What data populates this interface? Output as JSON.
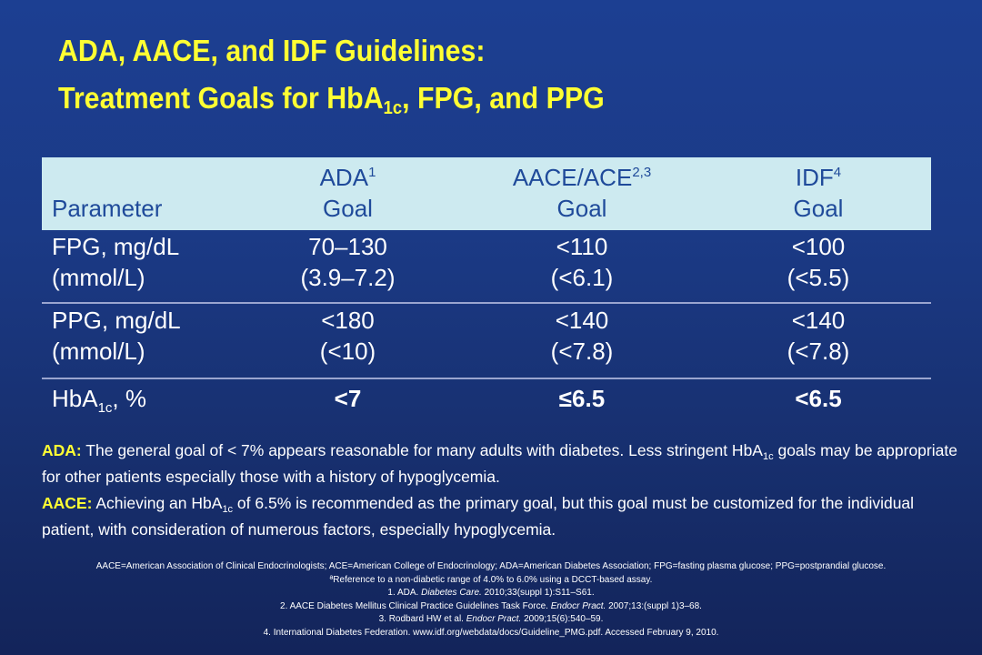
{
  "title": {
    "line1": "ADA, AACE, and IDF Guidelines:",
    "line2_pre": "Treatment Goals for HbA",
    "line2_sub": "1c",
    "line2_post": ", FPG, and PPG"
  },
  "table": {
    "header": {
      "parameter": "Parameter",
      "ada_name": "ADA",
      "ada_ref": "1",
      "ada_goal": "Goal",
      "aace_name": "AACE/ACE",
      "aace_ref": "2,3",
      "aace_goal": "Goal",
      "idf_name": "IDF",
      "idf_ref": "4",
      "idf_goal": "Goal"
    },
    "rows": [
      {
        "param_line1": "FPG, mg/dL",
        "param_line2": "(mmol/L)",
        "ada_line1": "70–130",
        "ada_line2": "(3.9–7.2)",
        "aace_line1": "<110",
        "aace_line2": "(<6.1)",
        "idf_line1": "<100",
        "idf_line2": "(<5.5)"
      },
      {
        "param_line1": "PPG, mg/dL",
        "param_line2": "(mmol/L)",
        "ada_line1": "<180",
        "ada_line2": "(<10)",
        "aace_line1": "<140",
        "aace_line2": "(<7.8)",
        "idf_line1": "<140",
        "idf_line2": "(<7.8)"
      },
      {
        "param_pre": "HbA",
        "param_sub": "1c",
        "param_post": ", %",
        "ada": "<7",
        "aace": "≤6.5",
        "idf": "<6.5"
      }
    ]
  },
  "notes": {
    "ada_label": "ADA:",
    "ada_text_pre": " The general goal of < 7% appears reasonable for many adults with diabetes.  Less stringent HbA",
    "ada_text_sub": "1c",
    "ada_text_post": " goals may be appropriate for other patients especially those with a history of hypoglycemia.",
    "aace_label": "AACE:",
    "aace_text_pre": " Achieving an HbA",
    "aace_text_sub": "1c",
    "aace_text_post": " of 6.5% is recommended as the primary goal, but this goal must be customized for the individual patient, with consideration of numerous factors, especially hypoglycemia."
  },
  "footnotes": {
    "abbreviations": "AACE=American Association of Clinical Endocrinologists;  ACE=American College of Endocrinology; ADA=American Diabetes Association;  FPG=fasting plasma glucose; PPG=postprandial glucose.",
    "reference_note": "ªReference to a non-diabetic range of 4.0% to 6.0% using a DCCT-based assay.",
    "ref1_pre": "1.  ADA. ",
    "ref1_journal": "Diabetes Care.",
    "ref1_post": " 2010;33(suppl 1):S11–S61.",
    "ref2_pre": "2.  AACE Diabetes Mellitus Clinical Practice Guidelines Task Force. ",
    "ref2_journal": "Endocr Pract.",
    "ref2_post": " 2007;13:(suppl 1)3–68.",
    "ref3_pre": "3.  Rodbard HW et al. ",
    "ref3_journal": "Endocr Pract.",
    "ref3_post": " 2009;15(6):540–59.",
    "ref4": "4.  International Diabetes Federation. www.idf.org/webdata/docs/Guideline_PMG.pdf.  Accessed February 9, 2010."
  }
}
